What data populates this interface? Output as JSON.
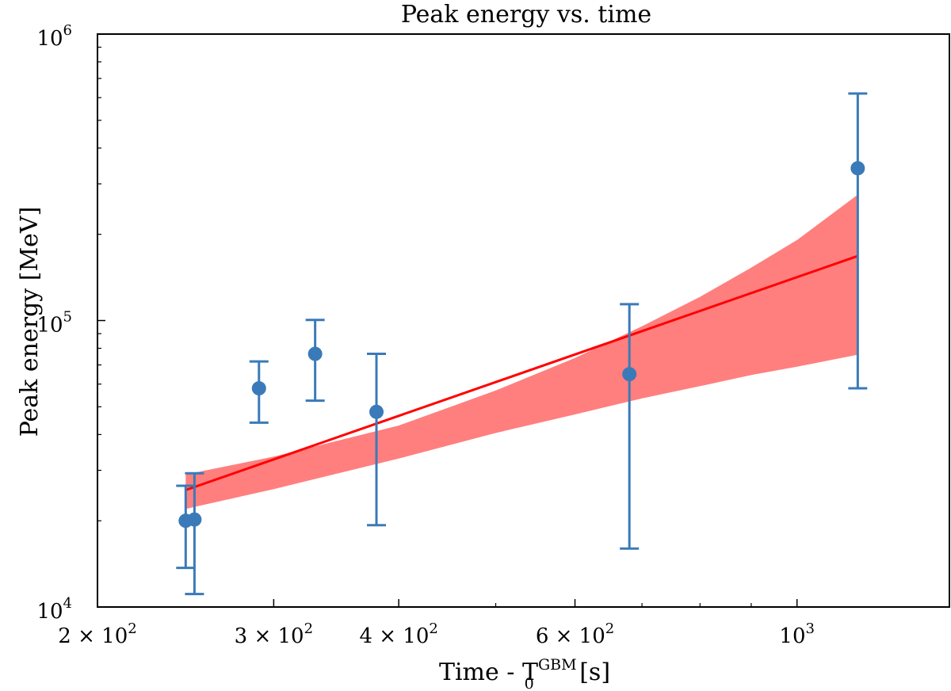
{
  "chart_data": {
    "type": "scatter",
    "title": "Peak energy vs. time",
    "xlabel": {
      "main": "Time - T",
      "sub": "0",
      "sup": "GBM",
      "unit": " [s]"
    },
    "ylabel": "Peak energy [MeV]",
    "xscale": "log",
    "yscale": "log",
    "xlim": [
      200,
      1420
    ],
    "ylim": [
      10000,
      1000000
    ],
    "grid": false,
    "x_ticks": [
      {
        "value": 200,
        "mant": "2",
        "exp": "2"
      },
      {
        "value": 300,
        "mant": "3",
        "exp": "2"
      },
      {
        "value": 400,
        "mant": "4",
        "exp": "2"
      },
      {
        "value": 600,
        "mant": "6",
        "exp": "2"
      },
      {
        "value": 1000,
        "mant": "",
        "exp": "3"
      }
    ],
    "x_minor_ticks": [
      500,
      700,
      800,
      900
    ],
    "y_ticks": [
      {
        "value": 10000,
        "exp": "4"
      },
      {
        "value": 100000,
        "exp": "5"
      },
      {
        "value": 1000000,
        "exp": "6"
      }
    ],
    "y_minor_ticks": [
      20000,
      30000,
      40000,
      50000,
      60000,
      70000,
      80000,
      90000,
      200000,
      300000,
      400000,
      500000,
      600000,
      700000,
      800000,
      900000
    ],
    "points": {
      "color": "#3a7ab8",
      "data": [
        {
          "x": 245,
          "y": 20000,
          "ylo": 13700,
          "yhi": 26500
        },
        {
          "x": 250,
          "y": 20200,
          "ylo": 11100,
          "yhi": 29300
        },
        {
          "x": 290,
          "y": 58000,
          "ylo": 44000,
          "yhi": 72000
        },
        {
          "x": 330,
          "y": 76500,
          "ylo": 52500,
          "yhi": 100500
        },
        {
          "x": 380,
          "y": 48000,
          "ylo": 19300,
          "yhi": 76500
        },
        {
          "x": 680,
          "y": 65000,
          "ylo": 16000,
          "yhi": 114000
        },
        {
          "x": 1150,
          "y": 340000,
          "ylo": 58000,
          "yhi": 620000
        }
      ]
    },
    "fit_line": {
      "color": "#ff0000",
      "x": [
        245,
        1150
      ],
      "y": [
        25600,
        168000
      ]
    },
    "fit_band": {
      "color": "#ff7f7f",
      "x": [
        245,
        300,
        400,
        500,
        600,
        700,
        800,
        900,
        1000,
        1150
      ],
      "upper": [
        29000,
        33500,
        43000,
        57000,
        74000,
        95500,
        121000,
        153000,
        191000,
        275000
      ],
      "lower": [
        22000,
        25800,
        33000,
        40500,
        47000,
        53500,
        59000,
        64500,
        69000,
        76000
      ]
    }
  }
}
